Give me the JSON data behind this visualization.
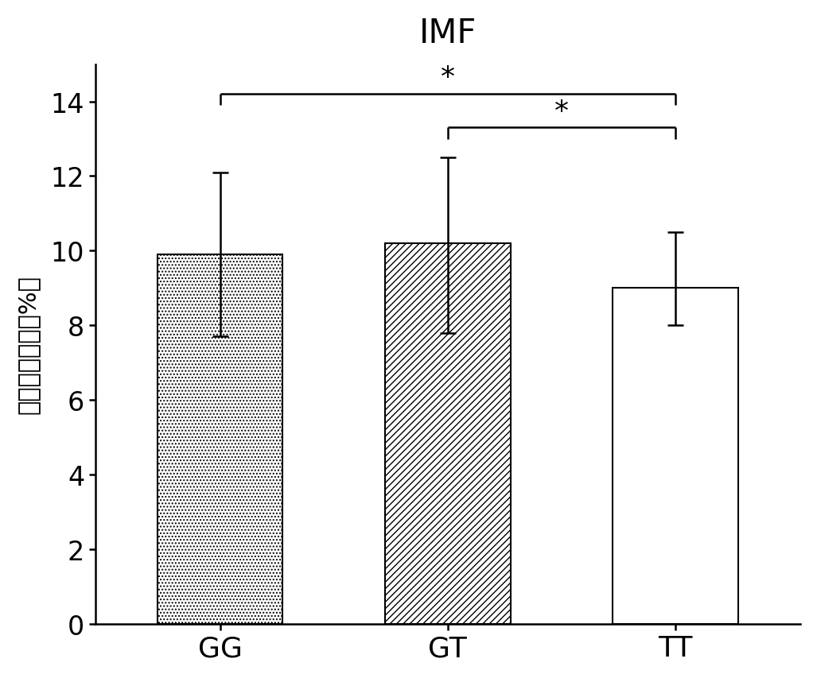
{
  "title": "IMF",
  "categories": [
    "GG",
    "GT",
    "TT"
  ],
  "values": [
    9.9,
    10.2,
    9.0
  ],
  "errors_upper": [
    2.2,
    2.3,
    1.5
  ],
  "errors_lower": [
    2.2,
    2.4,
    1.0
  ],
  "bar_hatches": [
    "....",
    "////",
    ""
  ],
  "bar_facecolors": [
    "white",
    "white",
    "white"
  ],
  "bar_edgecolors": [
    "black",
    "black",
    "black"
  ],
  "ylabel": "肌内脂肪含量（%）",
  "ylim": [
    0,
    15
  ],
  "yticks": [
    0,
    2,
    4,
    6,
    8,
    10,
    12,
    14
  ],
  "title_fontsize": 30,
  "tick_fontsize": 24,
  "ylabel_fontsize": 22,
  "xlabel_fontsize": 26,
  "bracket1": {
    "xi": 0,
    "xj": 2,
    "y": 14.2,
    "label": "*"
  },
  "bracket2": {
    "xi": 1,
    "xj": 2,
    "y": 13.3,
    "label": "*"
  },
  "background_color": "#ffffff"
}
